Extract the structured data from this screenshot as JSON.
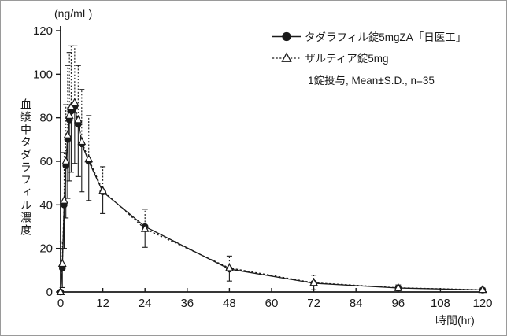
{
  "figure": {
    "kind": "pharmacokinetic concentration-time profile"
  },
  "chart_data": {
    "type": "line",
    "title": "",
    "y_unit": "(ng/mL)",
    "ylabel": "血漿中タダラフィル濃度",
    "xlabel": "時間(hr)",
    "note": "1錠投与, Mean±S.D., n=35",
    "xlim": [
      0,
      120
    ],
    "ylim": [
      0,
      120
    ],
    "xticks": [
      0,
      12,
      24,
      36,
      48,
      60,
      72,
      84,
      96,
      108,
      120
    ],
    "yticks": [
      0,
      20,
      40,
      60,
      80,
      100,
      120
    ],
    "grid": false,
    "legend_position": "top-right-inside",
    "x_hours": [
      0,
      0.5,
      1,
      1.5,
      2,
      2.5,
      3,
      4,
      5,
      6,
      8,
      12,
      24,
      48,
      72,
      96,
      120
    ],
    "series": [
      {
        "name": "タダラフィル錠5mgZA「日医工」",
        "marker": "filled-circle",
        "line_style": "solid",
        "color": "#1a1a1a",
        "errorbar_direction": "down",
        "errorbar_style": "solid",
        "mean": [
          0,
          11,
          40,
          58,
          70,
          79,
          83,
          85,
          77,
          68,
          60,
          46,
          30,
          10.5,
          4,
          1.8,
          0.9
        ],
        "sd": [
          0,
          9,
          20,
          24,
          27,
          28,
          28,
          26,
          24,
          22,
          18,
          10,
          9.5,
          5.5,
          3,
          1.2,
          0.7
        ]
      },
      {
        "name": "ザルティア錠5mg",
        "marker": "open-triangle",
        "line_style": "dashed",
        "color": "#1a1a1a",
        "errorbar_direction": "up",
        "errorbar_style": "dashed",
        "mean": [
          0,
          13,
          42,
          60,
          72,
          81,
          85,
          87,
          79,
          69,
          61,
          46.5,
          29,
          11,
          4.2,
          1.9,
          1
        ],
        "sd": [
          0,
          10,
          22,
          26,
          32,
          29,
          28,
          26,
          25,
          24,
          20,
          11,
          9,
          5.5,
          3.5,
          1.3,
          0.8
        ]
      }
    ]
  }
}
